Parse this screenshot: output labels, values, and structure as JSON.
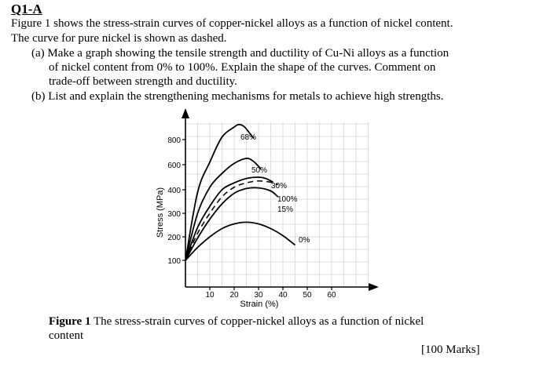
{
  "question": {
    "title": "Q1-A",
    "intro_line1": "Figure 1 shows the stress-strain curves of copper-nickel alloys as a function of nickel content.",
    "intro_line2": "The curve for pure nickel is shown as dashed.",
    "part_a_line1": "(a) Make a graph showing the tensile strength and ductility of Cu-Ni alloys as a function",
    "part_a_line2": "of nickel content from 0% to 100%. Explain the shape of the curves. Comment on",
    "part_a_line3": "trade-off between strength and ductility.",
    "part_b": "(b) List and explain the strengthening mechanisms for metals to achieve high strengths."
  },
  "figure": {
    "caption_label": "Figure 1",
    "caption_text_line1": " The stress-strain curves of copper-nickel alloys as a function of nickel",
    "caption_text_line2": "content"
  },
  "marks": "[100 Marks]",
  "chart_data": {
    "type": "line",
    "xlabel": "Strain (%)",
    "ylabel": "Stress (MPa)",
    "x_ticks": [
      "10",
      "20",
      "30",
      "40",
      "50",
      "60"
    ],
    "y_ticks": [
      "100",
      "200",
      "300",
      "400",
      "600",
      "800"
    ],
    "grid": true,
    "series": [
      {
        "name": "68%",
        "x": [
          0,
          5,
          10,
          15,
          20,
          22,
          24,
          26,
          28
        ],
        "y": [
          100,
          390,
          620,
          820,
          900,
          920,
          905,
          860,
          810
        ],
        "dashed": false
      },
      {
        "name": "50%",
        "x": [
          0,
          5,
          10,
          15,
          20,
          25,
          28,
          31
        ],
        "y": [
          100,
          300,
          420,
          530,
          610,
          650,
          625,
          565
        ],
        "dashed": false
      },
      {
        "name": "30%",
        "x": [
          0,
          5,
          10,
          15,
          20,
          25,
          30,
          33,
          36
        ],
        "y": [
          100,
          240,
          330,
          400,
          455,
          490,
          500,
          490,
          460
        ],
        "dashed": false
      },
      {
        "name": "100%",
        "x": [
          0,
          5,
          10,
          15,
          20,
          25,
          30,
          35,
          38
        ],
        "y": [
          100,
          215,
          300,
          370,
          420,
          455,
          470,
          460,
          440
        ],
        "dashed": true
      },
      {
        "name": "15%",
        "x": [
          0,
          5,
          10,
          15,
          20,
          25,
          30,
          35,
          38
        ],
        "y": [
          100,
          195,
          275,
          340,
          385,
          410,
          415,
          395,
          370
        ],
        "dashed": false
      },
      {
        "name": "0%",
        "x": [
          0,
          5,
          10,
          15,
          20,
          25,
          30,
          35,
          40,
          45
        ],
        "y": [
          100,
          155,
          200,
          235,
          255,
          262,
          255,
          235,
          205,
          165
        ],
        "dashed": false
      }
    ]
  }
}
